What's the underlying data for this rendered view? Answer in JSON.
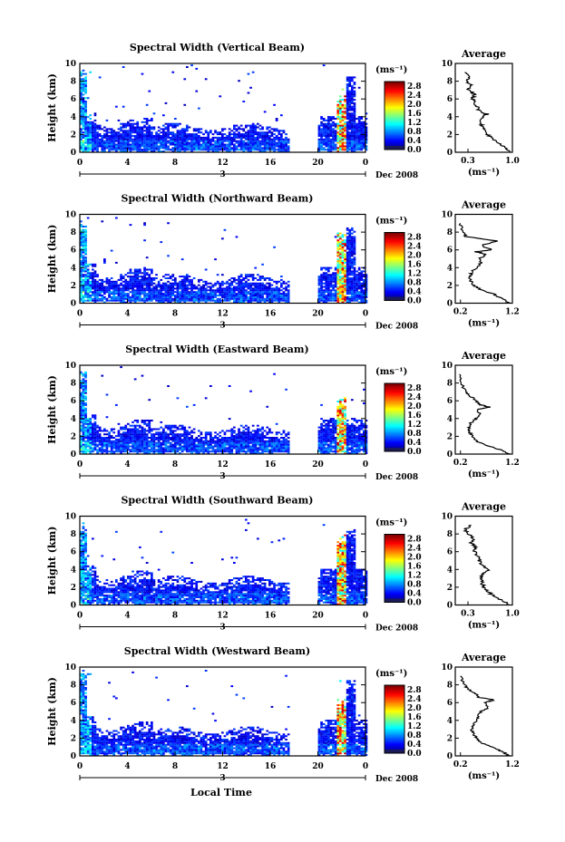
{
  "x_axis_label": "Local Time",
  "chart_data": [
    {
      "type": "heatmap",
      "title": "Spectral Width (Vertical Beam)",
      "ylabel": "Height (km)",
      "x_ticks": [
        "0",
        "4",
        "8",
        "12",
        "16",
        "20",
        "0"
      ],
      "y_ticks": [
        "0",
        "2",
        "4",
        "6",
        "8",
        "10"
      ],
      "xlim": [
        0,
        24
      ],
      "ylim": [
        0,
        10
      ],
      "date_day": "3",
      "date_label": "Dec 2008",
      "colorbar_unit": "(ms⁻¹)",
      "colorbar_ticks": [
        "2.8",
        "2.4",
        "2.0",
        "1.6",
        "1.2",
        "0.8",
        "0.4",
        "0.0"
      ],
      "colorbar_range": [
        0,
        3.0
      ],
      "avg": {
        "title": "Average",
        "xlabel": "(ms⁻¹)",
        "x_ticks": [
          "0.3",
          "1.0"
        ],
        "xlim": [
          0.1,
          1.0
        ],
        "y_ticks": [
          "0",
          "2",
          "4",
          "6",
          "8",
          "10"
        ],
        "profile": [
          [
            0,
            0.95
          ],
          [
            0.5,
            0.9
          ],
          [
            1,
            0.78
          ],
          [
            1.5,
            0.7
          ],
          [
            2,
            0.6
          ],
          [
            2.5,
            0.55
          ],
          [
            3,
            0.52
          ],
          [
            3.5,
            0.5
          ],
          [
            4,
            0.52
          ],
          [
            4.3,
            0.6
          ],
          [
            4.6,
            0.48
          ],
          [
            5,
            0.45
          ],
          [
            5.5,
            0.42
          ],
          [
            6,
            0.38
          ],
          [
            6.5,
            0.4
          ],
          [
            7,
            0.3
          ],
          [
            7.5,
            0.35
          ],
          [
            8,
            0.28
          ],
          [
            8.5,
            0.32
          ],
          [
            9,
            0.25
          ]
        ]
      }
    },
    {
      "type": "heatmap",
      "title": "Spectral Width (Northward Beam)",
      "ylabel": "Height (km)",
      "x_ticks": [
        "0",
        "4",
        "8",
        "12",
        "16",
        "20",
        "0"
      ],
      "y_ticks": [
        "0",
        "2",
        "4",
        "6",
        "8",
        "10"
      ],
      "xlim": [
        0,
        24
      ],
      "ylim": [
        0,
        10
      ],
      "date_day": "3",
      "date_label": "Dec 2008",
      "colorbar_unit": "(ms⁻¹)",
      "colorbar_ticks": [
        "2.8",
        "2.4",
        "2.0",
        "1.6",
        "1.2",
        "0.8",
        "0.4",
        "0.0"
      ],
      "colorbar_range": [
        0,
        3.0
      ],
      "avg": {
        "title": "Average",
        "xlabel": "(ms⁻¹)",
        "x_ticks": [
          "0.2",
          "1.2"
        ],
        "xlim": [
          0.1,
          1.2
        ],
        "y_ticks": [
          "0",
          "2",
          "4",
          "6",
          "8",
          "10"
        ],
        "profile": [
          [
            0,
            1.15
          ],
          [
            0.5,
            1.0
          ],
          [
            1,
            0.85
          ],
          [
            1.5,
            0.6
          ],
          [
            2,
            0.45
          ],
          [
            2.5,
            0.4
          ],
          [
            3,
            0.38
          ],
          [
            3.5,
            0.42
          ],
          [
            4,
            0.5
          ],
          [
            4.5,
            0.6
          ],
          [
            5,
            0.55
          ],
          [
            5.5,
            0.7
          ],
          [
            5.8,
            0.5
          ],
          [
            6,
            0.8
          ],
          [
            6.5,
            0.6
          ],
          [
            7,
            0.9
          ],
          [
            7.5,
            0.3
          ],
          [
            8,
            0.25
          ],
          [
            9,
            0.2
          ]
        ]
      }
    },
    {
      "type": "heatmap",
      "title": "Spectral Width (Eastward Beam)",
      "ylabel": "Height (km)",
      "x_ticks": [
        "0",
        "4",
        "8",
        "12",
        "16",
        "20",
        "0"
      ],
      "y_ticks": [
        "0",
        "2",
        "4",
        "6",
        "8",
        "10"
      ],
      "xlim": [
        0,
        24
      ],
      "ylim": [
        0,
        10
      ],
      "date_day": "3",
      "date_label": "Dec 2008",
      "colorbar_unit": "(ms⁻¹)",
      "colorbar_ticks": [
        "2.8",
        "2.4",
        "2.0",
        "1.6",
        "1.2",
        "0.8",
        "0.4",
        "0.0"
      ],
      "colorbar_range": [
        0,
        3.0
      ],
      "avg": {
        "title": "Average",
        "xlabel": "(ms⁻¹)",
        "x_ticks": [
          "0.2",
          "1.2"
        ],
        "xlim": [
          0.1,
          1.2
        ],
        "y_ticks": [
          "0",
          "2",
          "4",
          "6",
          "8",
          "10"
        ],
        "profile": [
          [
            0,
            1.15
          ],
          [
            0.5,
            0.95
          ],
          [
            1,
            0.7
          ],
          [
            1.5,
            0.5
          ],
          [
            2,
            0.42
          ],
          [
            2.5,
            0.38
          ],
          [
            3,
            0.36
          ],
          [
            3.5,
            0.4
          ],
          [
            4,
            0.5
          ],
          [
            4.5,
            0.6
          ],
          [
            5,
            0.5
          ],
          [
            5.3,
            0.75
          ],
          [
            5.6,
            0.55
          ],
          [
            6,
            0.5
          ],
          [
            6.5,
            0.4
          ],
          [
            7,
            0.3
          ],
          [
            8,
            0.22
          ],
          [
            9,
            0.18
          ]
        ]
      }
    },
    {
      "type": "heatmap",
      "title": "Spectral Width (Southward Beam)",
      "ylabel": "Height (km)",
      "x_ticks": [
        "0",
        "4",
        "8",
        "12",
        "16",
        "20",
        "0"
      ],
      "y_ticks": [
        "0",
        "2",
        "4",
        "6",
        "8",
        "10"
      ],
      "xlim": [
        0,
        24
      ],
      "ylim": [
        0,
        10
      ],
      "date_day": "3",
      "date_label": "Dec 2008",
      "colorbar_unit": "(ms⁻¹)",
      "colorbar_ticks": [
        "2.8",
        "2.4",
        "2.0",
        "1.6",
        "1.2",
        "0.8",
        "0.4",
        "0.0"
      ],
      "colorbar_range": [
        0,
        3.0
      ],
      "avg": {
        "title": "Average",
        "xlabel": "(ms⁻¹)",
        "x_ticks": [
          "0.3",
          "1.0"
        ],
        "xlim": [
          0.1,
          1.0
        ],
        "y_ticks": [
          "0",
          "2",
          "4",
          "6",
          "8",
          "10"
        ],
        "profile": [
          [
            0,
            0.95
          ],
          [
            0.5,
            0.85
          ],
          [
            1,
            0.7
          ],
          [
            1.5,
            0.62
          ],
          [
            2,
            0.55
          ],
          [
            2.5,
            0.52
          ],
          [
            3,
            0.5
          ],
          [
            3.5,
            0.55
          ],
          [
            4,
            0.62
          ],
          [
            4.5,
            0.52
          ],
          [
            5,
            0.48
          ],
          [
            5.5,
            0.45
          ],
          [
            6,
            0.4
          ],
          [
            6.5,
            0.42
          ],
          [
            7,
            0.35
          ],
          [
            7.5,
            0.38
          ],
          [
            8,
            0.3
          ],
          [
            8.5,
            0.25
          ],
          [
            9,
            0.35
          ]
        ]
      }
    },
    {
      "type": "heatmap",
      "title": "Spectral Width (Westward Beam)",
      "ylabel": "Height (km)",
      "x_ticks": [
        "0",
        "4",
        "8",
        "12",
        "16",
        "20",
        "0"
      ],
      "y_ticks": [
        "0",
        "2",
        "4",
        "6",
        "8",
        "10"
      ],
      "xlim": [
        0,
        24
      ],
      "ylim": [
        0,
        10
      ],
      "date_day": "3",
      "date_label": "Dec 2008",
      "colorbar_unit": "(ms⁻¹)",
      "colorbar_ticks": [
        "2.8",
        "2.4",
        "2.0",
        "1.6",
        "1.2",
        "0.8",
        "0.4",
        "0.0"
      ],
      "colorbar_range": [
        0,
        3.0
      ],
      "avg": {
        "title": "Average",
        "xlabel": "(ms⁻¹)",
        "x_ticks": [
          "0.2",
          "1.2"
        ],
        "xlim": [
          0.1,
          1.2
        ],
        "y_ticks": [
          "0",
          "2",
          "4",
          "6",
          "8",
          "10"
        ],
        "profile": [
          [
            0,
            1.15
          ],
          [
            0.5,
            1.0
          ],
          [
            1,
            0.8
          ],
          [
            1.5,
            0.6
          ],
          [
            2,
            0.5
          ],
          [
            2.5,
            0.45
          ],
          [
            3,
            0.42
          ],
          [
            3.5,
            0.45
          ],
          [
            4,
            0.5
          ],
          [
            4.5,
            0.55
          ],
          [
            5,
            0.6
          ],
          [
            5.5,
            0.75
          ],
          [
            6,
            0.65
          ],
          [
            6.3,
            0.85
          ],
          [
            6.6,
            0.55
          ],
          [
            7,
            0.5
          ],
          [
            7.5,
            0.35
          ],
          [
            8,
            0.28
          ],
          [
            9,
            0.2
          ]
        ]
      }
    }
  ]
}
